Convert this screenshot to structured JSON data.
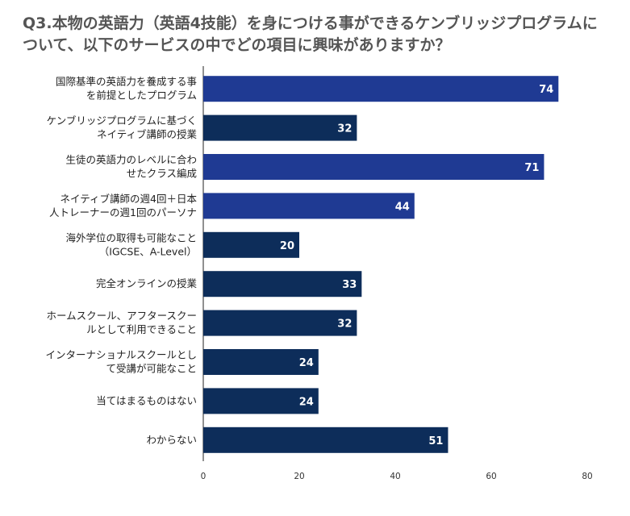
{
  "chart_data": {
    "type": "bar",
    "orientation": "horizontal",
    "title": "Q3.本物の英語力（英語4技能）を身につける事ができるケンブリッジプログラムについて、以下のサービスの中でどの項目に興味がありますか？",
    "categories": [
      [
        "国際基準の英語力を養成する事",
        "を前提としたプログラム"
      ],
      [
        "ケンブリッジプログラムに基づく",
        "ネイティブ講師の授業"
      ],
      [
        "生徒の英語力のレベルに合わ",
        "せたクラス編成"
      ],
      [
        "ネイティブ講師の週4回＋日本",
        "人トレーナーの週1回のパーソナ"
      ],
      [
        "海外学位の取得も可能なこと",
        "（IGCSE、A-Level）"
      ],
      [
        "完全オンラインの授業"
      ],
      [
        "ホームスクール、アフタースクー",
        "ルとして利用できること"
      ],
      [
        "インターナショナルスクールとし",
        "て受講が可能なこと"
      ],
      [
        "当てはまるものはない"
      ],
      [
        "わからない"
      ]
    ],
    "values": [
      74,
      32,
      71,
      44,
      20,
      33,
      32,
      24,
      24,
      51
    ],
    "bar_colors": [
      "#1f3a93",
      "#0d2d5a",
      "#1f3a93",
      "#1f3a93",
      "#0d2d5a",
      "#0d2d5a",
      "#0d2d5a",
      "#0d2d5a",
      "#0d2d5a",
      "#0d2d5a"
    ],
    "xlim": [
      0,
      80
    ],
    "xticks": [
      0,
      20,
      40,
      60,
      80
    ],
    "xlabel": "",
    "ylabel": "",
    "grid": false,
    "legend": "none"
  }
}
